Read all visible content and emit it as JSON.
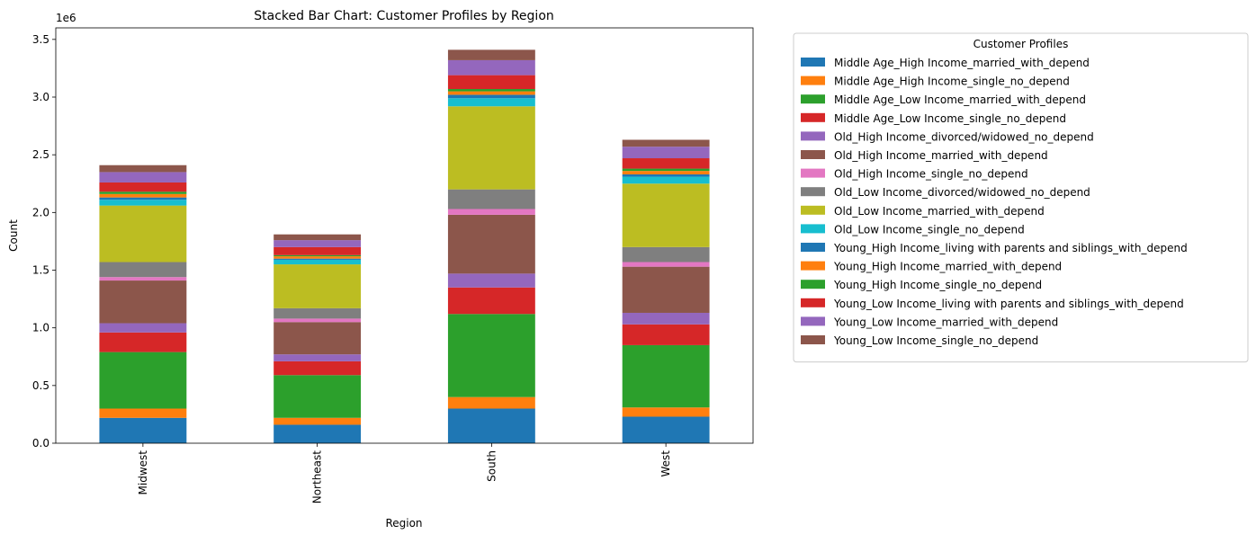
{
  "chart_data": {
    "type": "bar",
    "stacked": true,
    "title": "Stacked Bar Chart: Customer Profiles by Region",
    "xlabel": "Region",
    "ylabel": "Count",
    "y_multiplier_label": "1e6",
    "categories": [
      "Midwest",
      "Northeast",
      "South",
      "West"
    ],
    "ylim": [
      0,
      3.6
    ],
    "yticks": [
      0.0,
      0.5,
      1.0,
      1.5,
      2.0,
      2.5,
      3.0,
      3.5
    ],
    "ytick_labels": [
      "0.0",
      "0.5",
      "1.0",
      "1.5",
      "2.0",
      "2.5",
      "3.0",
      "3.5"
    ],
    "legend_title": "Customer Profiles",
    "legend_position": "outside-right",
    "grid": false,
    "series": [
      {
        "name": "Middle Age_High Income_married_with_depend",
        "color": "#1f77b4",
        "values": [
          0.22,
          0.16,
          0.3,
          0.23
        ]
      },
      {
        "name": "Middle Age_High Income_single_no_depend",
        "color": "#ff7f0e",
        "values": [
          0.08,
          0.06,
          0.1,
          0.08
        ]
      },
      {
        "name": "Middle Age_Low Income_married_with_depend",
        "color": "#2ca02c",
        "values": [
          0.49,
          0.37,
          0.72,
          0.54
        ]
      },
      {
        "name": "Middle Age_Low Income_single_no_depend",
        "color": "#d62728",
        "values": [
          0.17,
          0.12,
          0.23,
          0.18
        ]
      },
      {
        "name": "Old_High Income_divorced/widowed_no_depend",
        "color": "#9467bd",
        "values": [
          0.08,
          0.06,
          0.12,
          0.1
        ]
      },
      {
        "name": "Old_High Income_married_with_depend",
        "color": "#8c564b",
        "values": [
          0.37,
          0.28,
          0.51,
          0.4
        ]
      },
      {
        "name": "Old_High Income_single_no_depend",
        "color": "#e377c2",
        "values": [
          0.03,
          0.03,
          0.05,
          0.04
        ]
      },
      {
        "name": "Old_Low Income_divorced/widowed_no_depend",
        "color": "#7f7f7f",
        "values": [
          0.13,
          0.09,
          0.17,
          0.13
        ]
      },
      {
        "name": "Old_Low Income_married_with_depend",
        "color": "#bcbd22",
        "values": [
          0.49,
          0.38,
          0.72,
          0.55
        ]
      },
      {
        "name": "Old_Low Income_single_no_depend",
        "color": "#17becf",
        "values": [
          0.05,
          0.04,
          0.07,
          0.06
        ]
      },
      {
        "name": "Young_High Income_living with parents and siblings_with_depend",
        "color": "#1f77b4",
        "values": [
          0.02,
          0.01,
          0.03,
          0.02
        ]
      },
      {
        "name": "Young_High Income_married_with_depend",
        "color": "#ff7f0e",
        "values": [
          0.03,
          0.02,
          0.03,
          0.03
        ]
      },
      {
        "name": "Young_High Income_single_no_depend",
        "color": "#2ca02c",
        "values": [
          0.02,
          0.01,
          0.02,
          0.02
        ]
      },
      {
        "name": "Young_Low Income_living with parents and siblings_with_depend",
        "color": "#d62728",
        "values": [
          0.08,
          0.07,
          0.12,
          0.09
        ]
      },
      {
        "name": "Young_Low Income_married_with_depend",
        "color": "#9467bd",
        "values": [
          0.09,
          0.06,
          0.13,
          0.1
        ]
      },
      {
        "name": "Young_Low Income_single_no_depend",
        "color": "#8c564b",
        "values": [
          0.06,
          0.05,
          0.09,
          0.06
        ]
      }
    ]
  }
}
